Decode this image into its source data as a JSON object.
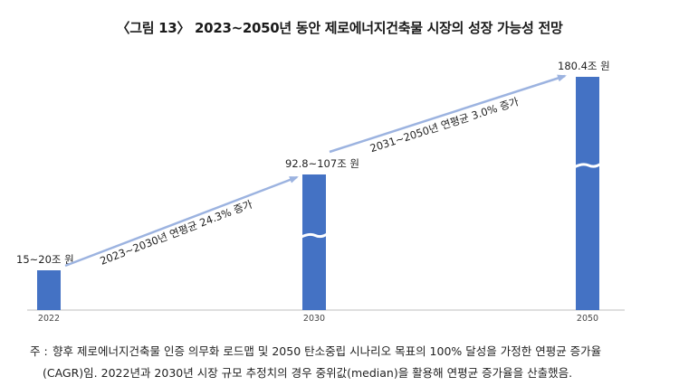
{
  "chart_data": {
    "type": "bar",
    "title": "〈그림 13〉 2023~2050년 동안 제로에너지건축물 시장의 성장 가능성 전망",
    "categories": [
      "2022",
      "2030",
      "2050"
    ],
    "values": [
      20,
      107,
      180.4
    ],
    "value_labels": [
      "15~20조 원",
      "92.8~107조 원",
      "180.4조 원"
    ],
    "axis_broken_bars": [
      "2030",
      "2050"
    ],
    "annotations": [
      {
        "from": "2022",
        "to": "2030",
        "text": "2023~2030년 연평균 24.3% 증가"
      },
      {
        "from": "2030",
        "to": "2050",
        "text": "2031~2050년 연평균 3.0% 증가"
      }
    ],
    "bar_color": "#4472c4",
    "arrow_color": "#9cb3e0"
  },
  "note": {
    "prefix": "주 :",
    "line1": "향후 제로에너지건축물 인증 의무화 로드맵 및 2050 탄소중립 시나리오 목표의 100% 달성을 가정한 연평균 증가율",
    "line2": "(CAGR)임. 2022년과 2030년 시장 규모 추정치의 경우 중위값(median)을 활용해 연평균 증가율을 산출했음."
  }
}
